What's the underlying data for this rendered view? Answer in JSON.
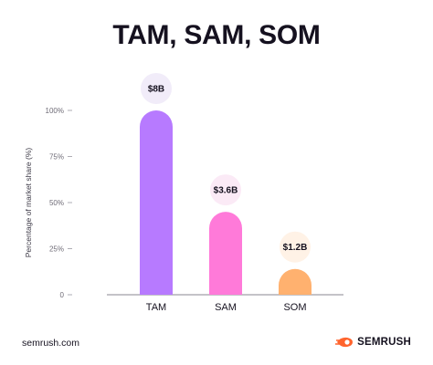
{
  "chart_data": {
    "type": "bar",
    "title": "TAM, SAM, SOM",
    "ylabel": "Percentage of market share (%)",
    "xlabel": "",
    "ylim": [
      0,
      100
    ],
    "yticks": [
      "0",
      "25%",
      "50%",
      "75%",
      "100%"
    ],
    "ytick_values": [
      0,
      25,
      50,
      75,
      100
    ],
    "categories": [
      "TAM",
      "SAM",
      "SOM"
    ],
    "values": [
      100,
      45,
      14
    ],
    "data_labels": [
      "$8B",
      "$3.6B",
      "$1.2B"
    ],
    "colors": [
      "#b77aff",
      "#ff7ad9",
      "#ffb16f"
    ],
    "bubble_colors": [
      "#f1ecf9",
      "#fbeaf6",
      "#fff2e6"
    ],
    "grid": false
  },
  "footer": {
    "source": "semrush.com",
    "brand": "SEMRUSH",
    "brand_color": "#ff642d"
  }
}
